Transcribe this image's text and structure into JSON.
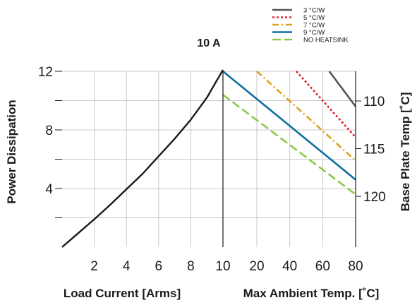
{
  "chart_data": {
    "type": "line",
    "title": "10 A",
    "grid": true,
    "legend_position": "top-right",
    "left_panel": {
      "xlabel": "Load Current [Arms]",
      "ylabel": "Power Dissipation",
      "xlim": [
        0,
        10
      ],
      "ylim": [
        0,
        12
      ],
      "x_ticks": [
        2,
        4,
        6,
        8,
        10
      ],
      "y_ticks": [
        4,
        8,
        12
      ],
      "series": [
        {
          "color": "#1a1a1a",
          "style": "solid",
          "x": [
            0,
            1,
            2,
            3,
            4,
            5,
            6,
            7,
            8,
            9,
            10
          ],
          "y": [
            0,
            0.95,
            1.9,
            2.9,
            3.95,
            5.0,
            6.2,
            7.4,
            8.7,
            10.2,
            12.1
          ]
        }
      ]
    },
    "right_panel": {
      "xlabel": "Max Ambient Temp. [˚C]",
      "ylabel": "Base Plate Temp [˚C]",
      "xlim": [
        10,
        80
      ],
      "x_ticks": [
        10,
        20,
        40,
        60,
        80
      ],
      "y_right_ticks": [
        110,
        115,
        120
      ],
      "series": [
        {
          "name": "3 °C/W",
          "color": "#555555",
          "style": "solid",
          "x": [
            64,
            80
          ],
          "y": [
            12.0,
            9.6
          ]
        },
        {
          "name": "5 °C/W",
          "color": "#e0202a",
          "style": "dot",
          "x": [
            44,
            80
          ],
          "y": [
            12.0,
            7.5
          ]
        },
        {
          "name": "7 °C/W",
          "color": "#e0a020",
          "style": "dashdot",
          "x": [
            20,
            80
          ],
          "y": [
            12.0,
            5.9
          ]
        },
        {
          "name": "9 °C/W",
          "color": "#0f6fa0",
          "style": "solid",
          "x": [
            10,
            80
          ],
          "y": [
            12.0,
            4.6
          ]
        },
        {
          "name": "NO HEATSINK",
          "color": "#8dc84a",
          "style": "dash",
          "x": [
            10,
            80
          ],
          "y": [
            10.4,
            3.6
          ]
        }
      ]
    }
  }
}
